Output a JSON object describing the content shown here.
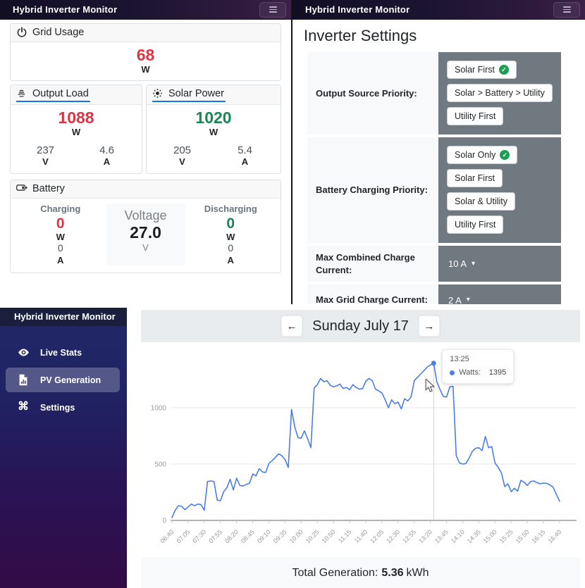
{
  "app": {
    "navbar_title": "Hybrid Inverter Monitor"
  },
  "icon_glyphs": {
    "arrow_left": "←",
    "arrow_right": "→",
    "caret_down": "▾",
    "check": "✓",
    "command": "⌘"
  },
  "icons": [
    "power-icon",
    "cfl-bulb-icon",
    "sun-icon",
    "battery-icon",
    "menu-icon",
    "eye-icon",
    "chart-file-icon",
    "command-icon",
    "mouse-cursor-icon"
  ],
  "live_stats": {
    "units": {
      "w": "W",
      "v": "V",
      "a": "A"
    },
    "grid": {
      "title": "Grid Usage",
      "watts": "68"
    },
    "output": {
      "title": "Output Load",
      "watts": "1088",
      "volts": "237",
      "amps": "4.6"
    },
    "solar": {
      "title": "Solar Power",
      "watts": "1020",
      "volts": "205",
      "amps": "5.4"
    },
    "battery": {
      "title": "Battery",
      "charging_label": "Charging",
      "discharging_label": "Discharging",
      "charging_watts": "0",
      "charging_amps": "0",
      "discharging_watts": "0",
      "discharging_amps": "0",
      "voltage_label": "Voltage",
      "voltage": "27.0"
    }
  },
  "settings": {
    "heading": "Inverter Settings",
    "rows": [
      {
        "label": "Output Source Priority:",
        "options": [
          {
            "label": "Solar First",
            "selected": true
          },
          {
            "label": "Solar > Battery > Utility",
            "selected": false
          },
          {
            "label": "Utility First",
            "selected": false
          }
        ]
      },
      {
        "label": "Battery Charging Priority:",
        "options": [
          {
            "label": "Solar Only",
            "selected": true
          },
          {
            "label": "Solar First",
            "selected": false
          },
          {
            "label": "Solar & Utility",
            "selected": false
          },
          {
            "label": "Utility First",
            "selected": false
          }
        ]
      },
      {
        "label": "Max Combined Charge Current:",
        "value": "10 A"
      },
      {
        "label": "Max Grid Charge Current:",
        "value": "2 A"
      }
    ]
  },
  "sidebar": {
    "title": "Hybrid Inverter Monitor",
    "items": [
      {
        "label": "Live Stats",
        "icon": "eye-icon",
        "active": false
      },
      {
        "label": "PV Generation",
        "icon": "chart-file-icon",
        "active": true
      },
      {
        "label": "Settings",
        "icon": "command-icon",
        "active": false
      }
    ]
  },
  "pv_page": {
    "date_title": "Sunday July 17",
    "tooltip": {
      "time": "13:25",
      "series_label": "Watts:",
      "value": "1395"
    },
    "total_label": "Total Generation:",
    "total_value": "5.36",
    "total_unit": "kWh"
  },
  "colors": {
    "accent_blue": "#1a73e8",
    "line_blue": "#4a7de8",
    "red": "#dc3545",
    "green": "#198754",
    "settings_gray": "#707880"
  },
  "chart_data": {
    "type": "line",
    "title": "PV Generation - Sunday July 17",
    "xlabel": "",
    "ylabel": "Watts",
    "ylim": [
      0,
      1500
    ],
    "yticks": [
      0,
      500,
      1000
    ],
    "x_tick_every": 5,
    "grid": true,
    "legend": false,
    "highlight": {
      "x": "13:25",
      "value": 1395
    },
    "x": [
      "06:40",
      "06:45",
      "06:50",
      "06:55",
      "07:00",
      "07:05",
      "07:10",
      "07:15",
      "07:20",
      "07:25",
      "07:30",
      "07:35",
      "07:40",
      "07:45",
      "07:50",
      "07:55",
      "08:00",
      "08:05",
      "08:10",
      "08:15",
      "08:20",
      "08:25",
      "08:30",
      "08:35",
      "08:40",
      "08:45",
      "08:50",
      "08:55",
      "09:00",
      "09:05",
      "09:10",
      "09:15",
      "09:20",
      "09:25",
      "09:30",
      "09:35",
      "09:40",
      "09:45",
      "09:50",
      "09:55",
      "10:00",
      "10:05",
      "10:10",
      "10:15",
      "10:20",
      "10:25",
      "10:30",
      "10:35",
      "10:40",
      "10:45",
      "10:50",
      "10:55",
      "11:00",
      "11:05",
      "11:10",
      "11:15",
      "11:20",
      "11:25",
      "11:30",
      "11:35",
      "11:40",
      "11:45",
      "11:50",
      "11:55",
      "12:00",
      "12:05",
      "12:10",
      "12:15",
      "12:20",
      "12:25",
      "12:30",
      "12:35",
      "12:40",
      "12:45",
      "12:50",
      "12:55",
      "13:00",
      "13:05",
      "13:10",
      "13:15",
      "13:20",
      "13:25",
      "13:30",
      "13:35",
      "13:40",
      "13:45",
      "13:50",
      "13:55",
      "14:00",
      "14:05",
      "14:10",
      "14:15",
      "14:20",
      "14:25",
      "14:30",
      "14:35",
      "14:40",
      "14:45",
      "14:50",
      "14:55",
      "15:00",
      "15:05",
      "15:10",
      "15:15",
      "15:20",
      "15:25",
      "15:30",
      "15:35",
      "15:40",
      "15:45",
      "15:50",
      "15:55",
      "16:00",
      "16:05",
      "16:10",
      "16:15",
      "16:20",
      "16:25",
      "16:30",
      "16:35",
      "16:40"
    ],
    "series": [
      {
        "name": "Watts",
        "values": [
          25,
          90,
          130,
          125,
          95,
          120,
          145,
          130,
          145,
          140,
          90,
          345,
          350,
          345,
          180,
          175,
          255,
          290,
          365,
          270,
          375,
          310,
          305,
          320,
          330,
          412,
          395,
          460,
          430,
          425,
          505,
          530,
          560,
          590,
          575,
          540,
          470,
          985,
          830,
          735,
          730,
          795,
          725,
          645,
          1175,
          1205,
          1260,
          1230,
          1240,
          1200,
          1185,
          1195,
          1210,
          1170,
          1180,
          1160,
          1205,
          1180,
          1165,
          1170,
          1235,
          1260,
          1240,
          1165,
          1150,
          1130,
          1070,
          1000,
          1070,
          1035,
          1050,
          990,
          1080,
          1060,
          1095,
          1240,
          1270,
          1300,
          1330,
          1360,
          1380,
          1395,
          1230,
          1160,
          1100,
          1095,
          1185,
          1190,
          575,
          510,
          500,
          505,
          555,
          615,
          640,
          645,
          620,
          745,
          645,
          655,
          510,
          470,
          420,
          300,
          325,
          255,
          285,
          260,
          355,
          340,
          310,
          345,
          350,
          335,
          325,
          332,
          328,
          315,
          295,
          230,
          170
        ]
      }
    ]
  }
}
